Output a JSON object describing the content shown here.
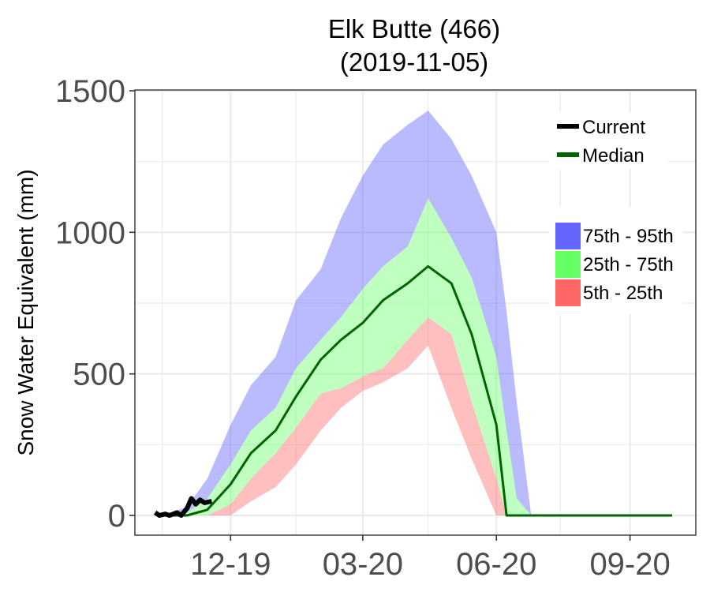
{
  "chart_data": {
    "type": "area",
    "title": "Elk Butte (466)",
    "subtitle": "(2019-11-05)",
    "xlabel": "",
    "ylabel": "Snow Water Equivalent (mm)",
    "x_tick_labels": [
      "12-19",
      "03-20",
      "06-20",
      "09-20"
    ],
    "y_ticks": [
      0,
      500,
      1000,
      1500
    ],
    "xlim": [
      "2019-10-01",
      "2020-09-30"
    ],
    "ylim": [
      -60,
      1500
    ],
    "grid": true,
    "legend_position": "right",
    "line_legend": [
      {
        "name": "Current",
        "color": "#000000"
      },
      {
        "name": "Median",
        "color": "#006400"
      }
    ],
    "band_legend": [
      {
        "name": "75th - 95th",
        "color": "#6666ff"
      },
      {
        "name": "25th - 75th",
        "color": "#66ff66"
      },
      {
        "name": "5th - 25th",
        "color": "#ff6666"
      }
    ],
    "x": [
      "2019-10-15",
      "2019-11-01",
      "2019-11-15",
      "2019-12-01",
      "2019-12-15",
      "2020-01-01",
      "2020-01-15",
      "2020-02-01",
      "2020-02-15",
      "2020-03-01",
      "2020-03-15",
      "2020-04-01",
      "2020-04-15",
      "2020-05-01",
      "2020-05-15",
      "2020-06-01",
      "2020-06-08",
      "2020-06-15",
      "2020-06-25",
      "2020-07-01",
      "2020-07-15",
      "2020-08-01",
      "2020-09-01",
      "2020-09-15",
      "2020-09-30"
    ],
    "series": [
      {
        "name": "95th",
        "values": [
          0,
          30,
          130,
          320,
          460,
          560,
          760,
          870,
          1050,
          1200,
          1310,
          1380,
          1430,
          1330,
          1200,
          1000,
          720,
          400,
          0,
          0,
          0,
          0,
          0,
          0,
          0
        ]
      },
      {
        "name": "75th",
        "values": [
          0,
          10,
          60,
          180,
          300,
          380,
          520,
          620,
          700,
          800,
          880,
          950,
          1120,
          980,
          840,
          560,
          300,
          60,
          0,
          0,
          0,
          0,
          0,
          0,
          0
        ]
      },
      {
        "name": "Median",
        "values": [
          0,
          0,
          20,
          110,
          220,
          300,
          420,
          550,
          620,
          680,
          760,
          820,
          880,
          820,
          640,
          320,
          0,
          0,
          0,
          0,
          0,
          0,
          0,
          0,
          0
        ]
      },
      {
        "name": "25th",
        "values": [
          0,
          0,
          0,
          40,
          130,
          220,
          310,
          430,
          450,
          490,
          520,
          620,
          700,
          640,
          400,
          130,
          0,
          0,
          0,
          0,
          0,
          0,
          0,
          0,
          0
        ]
      },
      {
        "name": "5th",
        "values": [
          0,
          0,
          0,
          0,
          50,
          100,
          180,
          300,
          380,
          440,
          470,
          520,
          600,
          380,
          200,
          0,
          0,
          0,
          0,
          0,
          0,
          0,
          0,
          0,
          0
        ]
      }
    ],
    "current": {
      "x": [
        "2019-10-10",
        "2019-10-13",
        "2019-10-17",
        "2019-10-20",
        "2019-10-25",
        "2019-10-28",
        "2019-11-01",
        "2019-11-04",
        "2019-11-07",
        "2019-11-10",
        "2019-11-13",
        "2019-11-18"
      ],
      "values": [
        10,
        0,
        5,
        0,
        10,
        0,
        25,
        60,
        40,
        55,
        45,
        50
      ]
    }
  }
}
